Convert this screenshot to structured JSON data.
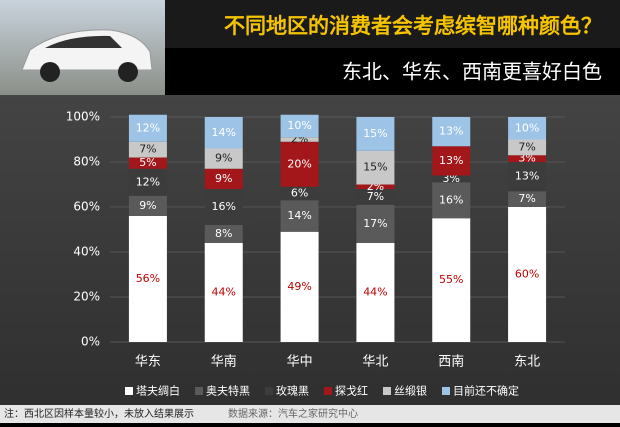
{
  "chart_data": {
    "type": "stacked_bar",
    "title": "不同地区的消费者会考虑缤智哪种颜色？",
    "subtitle": "东北、华东、西南更喜好白色",
    "categories": [
      "华东",
      "华南",
      "华中",
      "华北",
      "西南",
      "东北"
    ],
    "series": [
      {
        "name": "塔夫绸白",
        "color": "#ffffff",
        "label_color": "#c00000",
        "values": [
          56,
          44,
          49,
          44,
          55,
          60
        ],
        "value_labels": [
          "56%",
          "44%",
          "49%",
          "44%",
          "55%",
          "60%"
        ]
      },
      {
        "name": "奥夫特黑",
        "color": "#5a5a5a",
        "label_color": "#ffffff",
        "values": [
          9,
          8,
          14,
          17,
          16,
          7
        ],
        "value_labels": [
          "9%",
          "8%",
          "14%",
          "17%",
          "16%",
          "7%"
        ]
      },
      {
        "name": "玫瑰黑",
        "color": "#3c3c3c",
        "label_color": "#ffffff",
        "values": [
          12,
          16,
          6,
          7,
          3,
          13
        ],
        "value_labels": [
          "12%",
          "16%",
          "6%",
          "7%",
          "3%",
          "13%"
        ]
      },
      {
        "name": "探戈红",
        "color": "#a3161a",
        "label_color": "#ffffff",
        "values": [
          5,
          9,
          20,
          2,
          13,
          3
        ],
        "value_labels": [
          "5%",
          "9%",
          "20%",
          "2%",
          "13%",
          "3%"
        ]
      },
      {
        "name": "丝缎银",
        "color": "#c8c8c8",
        "label_color": "#222222",
        "values": [
          7,
          9,
          2,
          15,
          null,
          7
        ],
        "value_labels": [
          "7%",
          "9%",
          "2%",
          "15%",
          null,
          "7%"
        ]
      },
      {
        "name": "目前还不确定",
        "color": "#9dc3e6",
        "label_color": "#ffffff",
        "values": [
          12,
          14,
          10,
          15,
          13,
          10
        ],
        "value_labels": [
          "12%",
          "14%",
          "10%",
          "15%",
          "13%",
          "10%"
        ]
      }
    ],
    "ylim": [
      0,
      100
    ],
    "yticks": [
      {
        "value": 0,
        "label": "0%"
      },
      {
        "value": 20,
        "label": "20%"
      },
      {
        "value": 40,
        "label": "40%"
      },
      {
        "value": 60,
        "label": "60%"
      },
      {
        "value": 80,
        "label": "80%"
      },
      {
        "value": 100,
        "label": "100%"
      }
    ],
    "grid": true,
    "note": "注：西北区因样本量较小，未放入结果展示",
    "source": "数据来源：汽车之家研究中心"
  }
}
